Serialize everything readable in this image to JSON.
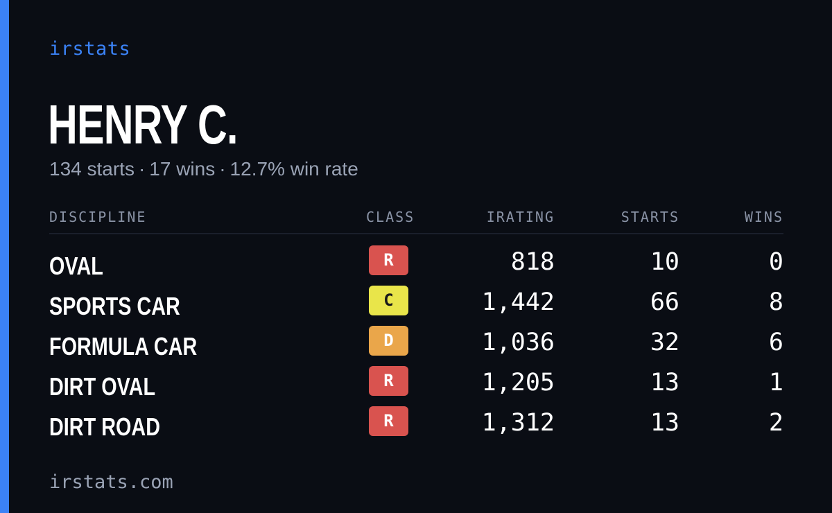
{
  "brand": "irstats",
  "driver": {
    "name": "HENRY C.",
    "starts_text": "134 starts",
    "wins_text": "17 wins",
    "win_rate_text": "12.7% win rate",
    "separator": "·"
  },
  "colors": {
    "accent": "#3b82f6",
    "class_R": "#d9534f",
    "class_C": "#e9e54a",
    "class_D": "#eaa64a"
  },
  "table": {
    "headers": {
      "discipline": "DISCIPLINE",
      "class": "CLASS",
      "irating": "IRATING",
      "starts": "STARTS",
      "wins": "WINS"
    },
    "rows": [
      {
        "discipline": "OVAL",
        "class": "R",
        "irating": "818",
        "starts": "10",
        "wins": "0"
      },
      {
        "discipline": "SPORTS CAR",
        "class": "C",
        "irating": "1,442",
        "starts": "66",
        "wins": "8"
      },
      {
        "discipline": "FORMULA CAR",
        "class": "D",
        "irating": "1,036",
        "starts": "32",
        "wins": "6"
      },
      {
        "discipline": "DIRT OVAL",
        "class": "R",
        "irating": "1,205",
        "starts": "13",
        "wins": "1"
      },
      {
        "discipline": "DIRT ROAD",
        "class": "R",
        "irating": "1,312",
        "starts": "13",
        "wins": "2"
      }
    ]
  },
  "footer": "irstats.com"
}
